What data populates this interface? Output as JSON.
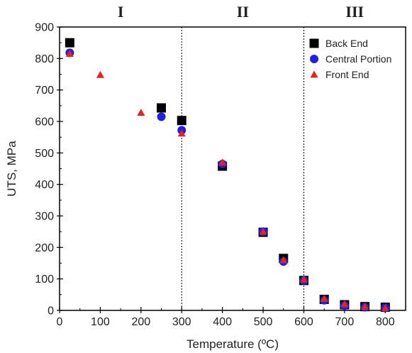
{
  "chart_data": {
    "type": "scatter",
    "title": "",
    "xlabel": "Temperature (ºC)",
    "ylabel": "UTS, MPa",
    "xlim": [
      0,
      850
    ],
    "ylim": [
      0,
      900
    ],
    "xticks": [
      0,
      100,
      200,
      300,
      400,
      500,
      600,
      700,
      800
    ],
    "yticks": [
      0,
      100,
      200,
      300,
      400,
      500,
      600,
      700,
      800,
      900
    ],
    "grid": false,
    "legend_position": "top-right",
    "regions": [
      {
        "label": "I",
        "x_center": 150
      },
      {
        "label": "II",
        "x_center": 450
      },
      {
        "label": "III",
        "x_center": 725
      }
    ],
    "dividers_x": [
      300,
      600
    ],
    "series": [
      {
        "name": "Back End",
        "marker": "square",
        "color": "#000000",
        "x": [
          25,
          250,
          300,
          400,
          500,
          550,
          600,
          650,
          700,
          750,
          800
        ],
        "y": [
          850,
          643,
          603,
          458,
          248,
          165,
          95,
          35,
          18,
          12,
          10
        ]
      },
      {
        "name": "Central Portion",
        "marker": "circle",
        "color": "#1f1fe8",
        "x": [
          25,
          250,
          300,
          400,
          500,
          550,
          600,
          650,
          700,
          750,
          800
        ],
        "y": [
          818,
          615,
          572,
          465,
          250,
          155,
          95,
          32,
          15,
          10,
          8
        ]
      },
      {
        "name": "Front End",
        "marker": "triangle",
        "color": "#e82020",
        "x": [
          25,
          100,
          200,
          300,
          400,
          500,
          550,
          600,
          650,
          700,
          750,
          800
        ],
        "y": [
          815,
          748,
          628,
          562,
          470,
          250,
          160,
          98,
          37,
          20,
          12,
          8
        ]
      }
    ]
  }
}
